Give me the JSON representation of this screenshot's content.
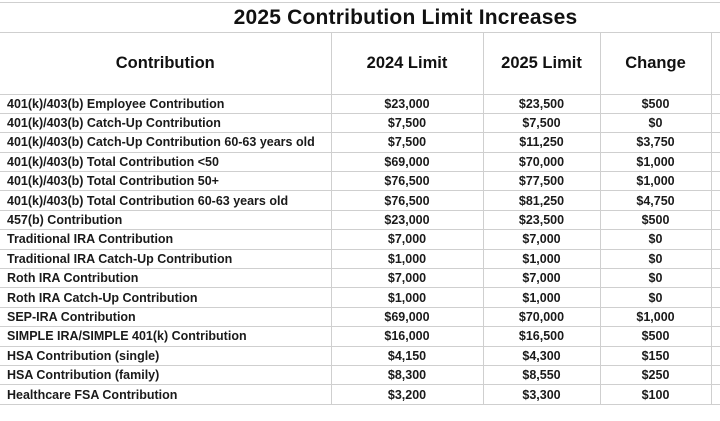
{
  "page": {
    "title": "2025 Contribution Limit Increases"
  },
  "chart_data": {
    "type": "table",
    "title": "2025 Contribution Limit Increases",
    "columns": [
      "Contribution",
      "2024 Limit",
      "2025 Limit",
      "Change"
    ],
    "rows": [
      [
        "401(k)/403(b) Employee Contribution",
        "$23,000",
        "$23,500",
        "$500"
      ],
      [
        "401(k)/403(b) Catch-Up Contribution",
        "$7,500",
        "$7,500",
        "$0"
      ],
      [
        "401(k)/403(b) Catch-Up Contribution 60-63 years old",
        "$7,500",
        "$11,250",
        "$3,750"
      ],
      [
        "401(k)/403(b) Total Contribution <50",
        "$69,000",
        "$70,000",
        "$1,000"
      ],
      [
        "401(k)/403(b) Total Contribution 50+",
        "$76,500",
        "$77,500",
        "$1,000"
      ],
      [
        "401(k)/403(b) Total Contribution 60-63 years old",
        "$76,500",
        "$81,250",
        "$4,750"
      ],
      [
        "457(b) Contribution",
        "$23,000",
        "$23,500",
        "$500"
      ],
      [
        "Traditional IRA Contribution",
        "$7,000",
        "$7,000",
        "$0"
      ],
      [
        "Traditional IRA Catch-Up Contribution",
        "$1,000",
        "$1,000",
        "$0"
      ],
      [
        "Roth IRA Contribution",
        "$7,000",
        "$7,000",
        "$0"
      ],
      [
        "Roth IRA Catch-Up Contribution",
        "$1,000",
        "$1,000",
        "$0"
      ],
      [
        "SEP-IRA Contribution",
        "$69,000",
        "$70,000",
        "$1,000"
      ],
      [
        "SIMPLE IRA/SIMPLE 401(k) Contribution",
        "$16,000",
        "$16,500",
        "$500"
      ],
      [
        "HSA Contribution (single)",
        "$4,150",
        "$4,300",
        "$150"
      ],
      [
        "HSA Contribution (family)",
        "$8,300",
        "$8,550",
        "$250"
      ],
      [
        "Healthcare FSA Contribution",
        "$3,200",
        "$3,300",
        "$100"
      ]
    ],
    "layout": {
      "grid": true,
      "header_row": true,
      "first_column_align": "left",
      "value_columns_align": "center"
    }
  },
  "colors": {
    "background": "#ffffff",
    "gridline": "#cfcfcf",
    "text": "#1a1a1a"
  }
}
